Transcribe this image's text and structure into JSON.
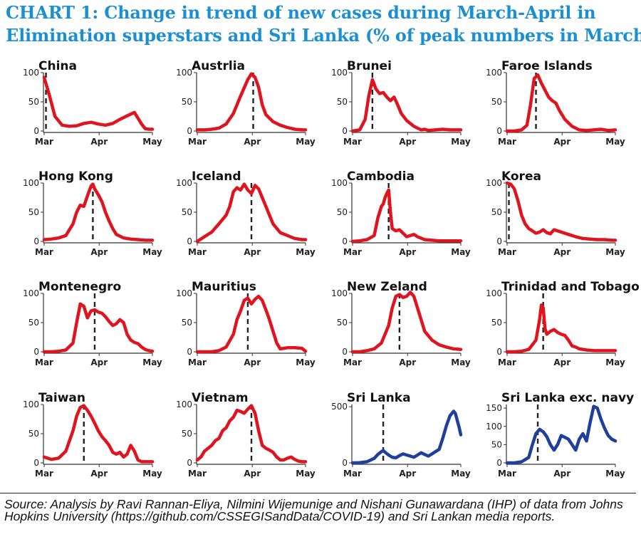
{
  "title": {
    "line1": "CHART 1: Change in trend of new cases during March-April in",
    "line2": "Elimination superstars and Sri Lanka (% of peak numbers in March)"
  },
  "source": "Source: Analysis by Ravi Rannan-Eliya, Nilmini Wijemunige and Nishani Gunawardana (IHP) of data from Johns Hopkins University (https://github.com/CSSEGISandData/COVID-19) and Sri Lankan media reports.",
  "colors": {
    "title": "#1c8fd0",
    "elimination": "#e0141e",
    "sri_lanka": "#1f3f9c",
    "axis": "#333333"
  },
  "chart_data": [
    {
      "type": "line",
      "title": "China",
      "x_ticks": [
        "Mar",
        "Apr",
        "May"
      ],
      "y_ticks": [
        0,
        50,
        100
      ],
      "ylim": [
        0,
        100
      ],
      "marker_day": 1,
      "color": "#e0141e",
      "x": [
        0,
        3,
        6,
        10,
        14,
        18,
        22,
        26,
        30,
        34,
        38,
        42,
        46,
        50,
        54,
        56,
        58,
        60
      ],
      "y": [
        92,
        60,
        25,
        10,
        8,
        9,
        13,
        15,
        12,
        10,
        13,
        20,
        26,
        32,
        12,
        4,
        3,
        3
      ]
    },
    {
      "type": "line",
      "title": "Austrlia",
      "x_ticks": [
        "Mar",
        "Apr",
        "May"
      ],
      "y_ticks": [
        0,
        50,
        100
      ],
      "ylim": [
        0,
        100
      ],
      "marker_day": 31,
      "color": "#e0141e",
      "x": [
        0,
        4,
        8,
        12,
        16,
        20,
        24,
        28,
        30,
        32,
        34,
        36,
        38,
        42,
        46,
        50,
        54,
        58,
        60
      ],
      "y": [
        2,
        2,
        3,
        5,
        12,
        30,
        60,
        88,
        98,
        92,
        75,
        45,
        28,
        16,
        10,
        6,
        3,
        2,
        2
      ]
    },
    {
      "type": "line",
      "title": "Brunei",
      "x_ticks": [
        "Mar",
        "Apr",
        "May"
      ],
      "y_ticks": [
        0,
        50,
        100
      ],
      "ylim": [
        0,
        100
      ],
      "marker_day": 11,
      "color": "#e0141e",
      "x": [
        0,
        4,
        7,
        9,
        11,
        13,
        15,
        17,
        19,
        21,
        23,
        25,
        27,
        30,
        34,
        38,
        40,
        42,
        46,
        50,
        54,
        58,
        60
      ],
      "y": [
        0,
        2,
        20,
        60,
        88,
        72,
        64,
        66,
        58,
        52,
        58,
        45,
        30,
        18,
        8,
        2,
        3,
        1,
        2,
        3,
        2,
        2,
        2
      ]
    },
    {
      "type": "line",
      "title": "Faroe Islands",
      "x_ticks": [
        "Mar",
        "Apr",
        "May"
      ],
      "y_ticks": [
        0,
        50,
        100
      ],
      "ylim": [
        0,
        100
      ],
      "marker_day": 16,
      "color": "#e0141e",
      "x": [
        0,
        4,
        8,
        11,
        13,
        15,
        17,
        19,
        21,
        23,
        25,
        27,
        29,
        32,
        36,
        40,
        44,
        48,
        52,
        56,
        60
      ],
      "y": [
        0,
        0,
        2,
        10,
        45,
        90,
        96,
        82,
        70,
        58,
        52,
        48,
        35,
        20,
        8,
        2,
        1,
        2,
        3,
        1,
        2
      ]
    },
    {
      "type": "line",
      "title": "Hong Kong",
      "x_ticks": [
        "Mar",
        "Apr",
        "May"
      ],
      "y_ticks": [
        0,
        50,
        100
      ],
      "ylim": [
        0,
        100
      ],
      "marker_day": 27,
      "color": "#e0141e",
      "x": [
        0,
        4,
        8,
        12,
        16,
        18,
        20,
        22,
        24,
        26,
        27,
        28,
        30,
        32,
        34,
        36,
        38,
        40,
        44,
        48,
        52,
        56,
        60
      ],
      "y": [
        3,
        4,
        6,
        10,
        30,
        50,
        62,
        60,
        78,
        95,
        98,
        90,
        80,
        68,
        50,
        35,
        22,
        12,
        6,
        4,
        3,
        2,
        2
      ]
    },
    {
      "type": "line",
      "title": "Iceland",
      "x_ticks": [
        "Mar",
        "Apr",
        "May"
      ],
      "y_ticks": [
        0,
        50,
        100
      ],
      "ylim": [
        0,
        100
      ],
      "marker_day": 30,
      "color": "#e0141e",
      "x": [
        0,
        4,
        8,
        12,
        16,
        18,
        20,
        22,
        24,
        26,
        28,
        30,
        32,
        34,
        36,
        38,
        40,
        42,
        46,
        50,
        54,
        58,
        60
      ],
      "y": [
        0,
        8,
        16,
        30,
        45,
        60,
        85,
        92,
        88,
        98,
        88,
        82,
        96,
        90,
        75,
        60,
        45,
        30,
        15,
        10,
        5,
        3,
        3
      ]
    },
    {
      "type": "line",
      "title": "Cambodia",
      "x_ticks": [
        "Mar",
        "Apr",
        "May"
      ],
      "y_ticks": [
        0,
        50,
        100
      ],
      "ylim": [
        0,
        100
      ],
      "marker_day": 20,
      "color": "#e0141e",
      "x": [
        0,
        4,
        8,
        12,
        14,
        16,
        17,
        18,
        19,
        20,
        21,
        22,
        24,
        26,
        28,
        30,
        32,
        34,
        36,
        40,
        44,
        48,
        52,
        56,
        60
      ],
      "y": [
        0,
        1,
        3,
        10,
        40,
        60,
        64,
        75,
        82,
        88,
        50,
        22,
        18,
        20,
        14,
        8,
        10,
        12,
        8,
        3,
        2,
        1,
        1,
        1,
        1
      ]
    },
    {
      "type": "line",
      "title": "Korea",
      "x_ticks": [
        "Mar",
        "Apr",
        "May"
      ],
      "y_ticks": [
        0,
        50,
        100
      ],
      "ylim": [
        0,
        100
      ],
      "marker_day": 1,
      "color": "#e0141e",
      "x": [
        0,
        2,
        4,
        6,
        8,
        10,
        12,
        14,
        16,
        18,
        20,
        22,
        24,
        26,
        28,
        30,
        34,
        38,
        42,
        46,
        50,
        54,
        58,
        60
      ],
      "y": [
        100,
        98,
        90,
        70,
        45,
        30,
        22,
        18,
        14,
        16,
        20,
        15,
        13,
        20,
        18,
        16,
        12,
        8,
        5,
        4,
        3,
        3,
        2,
        2
      ]
    },
    {
      "type": "line",
      "title": "Montenegro",
      "x_ticks": [
        "Mar",
        "Apr",
        "May"
      ],
      "y_ticks": [
        0,
        50,
        100
      ],
      "ylim": [
        0,
        100
      ],
      "marker_day": 28,
      "color": "#e0141e",
      "x": [
        0,
        4,
        8,
        12,
        16,
        18,
        20,
        22,
        24,
        26,
        28,
        30,
        32,
        34,
        36,
        38,
        40,
        42,
        44,
        46,
        48,
        50,
        52,
        54,
        56,
        58,
        60
      ],
      "y": [
        0,
        0,
        1,
        3,
        15,
        50,
        82,
        78,
        58,
        70,
        72,
        68,
        66,
        60,
        52,
        45,
        48,
        55,
        50,
        30,
        20,
        16,
        14,
        8,
        4,
        2,
        1
      ]
    },
    {
      "type": "line",
      "title": "Mauritius",
      "x_ticks": [
        "Mar",
        "Apr",
        "May"
      ],
      "y_ticks": [
        0,
        50,
        100
      ],
      "ylim": [
        0,
        100
      ],
      "marker_day": 28,
      "color": "#e0141e",
      "x": [
        0,
        4,
        8,
        12,
        16,
        20,
        22,
        24,
        26,
        28,
        30,
        32,
        34,
        36,
        38,
        40,
        42,
        44,
        46,
        48,
        50,
        54,
        58,
        60
      ],
      "y": [
        0,
        0,
        0,
        2,
        8,
        30,
        55,
        70,
        88,
        92,
        82,
        90,
        95,
        88,
        72,
        55,
        35,
        15,
        5,
        6,
        7,
        7,
        6,
        1
      ]
    },
    {
      "type": "line",
      "title": "New Zeland",
      "x_ticks": [
        "Mar",
        "Apr",
        "May"
      ],
      "y_ticks": [
        0,
        50,
        100
      ],
      "ylim": [
        0,
        100
      ],
      "marker_day": 26,
      "color": "#e0141e",
      "x": [
        0,
        4,
        8,
        12,
        16,
        20,
        22,
        24,
        26,
        28,
        30,
        32,
        34,
        36,
        38,
        40,
        44,
        48,
        52,
        56,
        60
      ],
      "y": [
        0,
        0,
        2,
        5,
        15,
        45,
        75,
        95,
        98,
        93,
        95,
        102,
        95,
        75,
        55,
        35,
        20,
        12,
        8,
        5,
        4
      ]
    },
    {
      "type": "line",
      "title": "Trinidad and Tobago",
      "x_ticks": [
        "Mar",
        "Apr",
        "May"
      ],
      "y_ticks": [
        0,
        50,
        100
      ],
      "ylim": [
        0,
        100
      ],
      "marker_day": 20,
      "color": "#e0141e",
      "x": [
        0,
        4,
        8,
        12,
        16,
        18,
        19,
        20,
        21,
        22,
        24,
        26,
        28,
        30,
        32,
        34,
        36,
        38,
        40,
        44,
        48,
        52,
        56,
        60
      ],
      "y": [
        0,
        0,
        1,
        4,
        20,
        55,
        80,
        75,
        40,
        30,
        35,
        38,
        33,
        30,
        28,
        20,
        10,
        8,
        5,
        3,
        2,
        2,
        2,
        2
      ]
    },
    {
      "type": "line",
      "title": "Taiwan",
      "x_ticks": [
        "Mar",
        "Apr",
        "May"
      ],
      "y_ticks": [
        0,
        50,
        100
      ],
      "ylim": [
        0,
        100
      ],
      "marker_day": 22,
      "color": "#e0141e",
      "x": [
        0,
        4,
        8,
        12,
        16,
        18,
        20,
        22,
        24,
        26,
        28,
        30,
        32,
        34,
        36,
        38,
        40,
        42,
        44,
        46,
        48,
        50,
        52,
        54,
        56,
        58,
        60
      ],
      "y": [
        10,
        6,
        8,
        20,
        55,
        80,
        95,
        98,
        90,
        80,
        68,
        55,
        45,
        38,
        30,
        18,
        15,
        18,
        10,
        15,
        30,
        20,
        5,
        2,
        2,
        2,
        2
      ]
    },
    {
      "type": "line",
      "title": "Vietnam",
      "x_ticks": [
        "Mar",
        "Apr",
        "May"
      ],
      "y_ticks": [
        0,
        50,
        100
      ],
      "ylim": [
        0,
        100
      ],
      "marker_day": 30,
      "color": "#e0141e",
      "x": [
        0,
        2,
        4,
        6,
        8,
        10,
        12,
        14,
        16,
        18,
        20,
        22,
        24,
        26,
        28,
        30,
        32,
        34,
        36,
        38,
        40,
        42,
        44,
        46,
        48,
        50,
        52,
        54,
        56,
        58,
        60
      ],
      "y": [
        5,
        10,
        20,
        25,
        30,
        38,
        42,
        55,
        60,
        72,
        78,
        90,
        88,
        85,
        92,
        98,
        85,
        55,
        30,
        25,
        22,
        18,
        10,
        5,
        5,
        8,
        10,
        6,
        3,
        2,
        2
      ]
    },
    {
      "type": "line",
      "title": "Sri Lanka",
      "x_ticks": [
        "Mar",
        "Apr",
        "May"
      ],
      "y_ticks": [
        0,
        500
      ],
      "ylim": [
        0,
        520
      ],
      "marker_day": 17,
      "color": "#1f3f9c",
      "x": [
        0,
        4,
        8,
        12,
        14,
        16,
        17,
        18,
        20,
        22,
        24,
        26,
        28,
        30,
        32,
        34,
        36,
        38,
        40,
        42,
        44,
        46,
        48,
        50,
        52,
        54,
        56,
        57,
        58,
        59,
        60
      ],
      "y": [
        0,
        2,
        10,
        40,
        75,
        100,
        110,
        95,
        70,
        50,
        45,
        65,
        80,
        70,
        60,
        50,
        70,
        90,
        75,
        60,
        80,
        100,
        120,
        220,
        330,
        420,
        460,
        440,
        380,
        320,
        250
      ]
    },
    {
      "type": "line",
      "title": "Sri Lanka exc. navy",
      "x_ticks": [
        "Mar",
        "Apr",
        "May"
      ],
      "y_ticks": [
        0,
        50,
        100,
        150
      ],
      "ylim": [
        0,
        160
      ],
      "marker_day": 17,
      "color": "#1f3f9c",
      "x": [
        0,
        4,
        8,
        12,
        14,
        16,
        18,
        20,
        22,
        24,
        26,
        28,
        30,
        32,
        34,
        36,
        38,
        40,
        42,
        44,
        46,
        48,
        50,
        52,
        54,
        56,
        58,
        60
      ],
      "y": [
        0,
        0,
        3,
        15,
        50,
        80,
        92,
        85,
        72,
        50,
        35,
        50,
        75,
        70,
        65,
        50,
        35,
        65,
        80,
        60,
        110,
        155,
        150,
        120,
        95,
        75,
        65,
        60
      ]
    }
  ]
}
